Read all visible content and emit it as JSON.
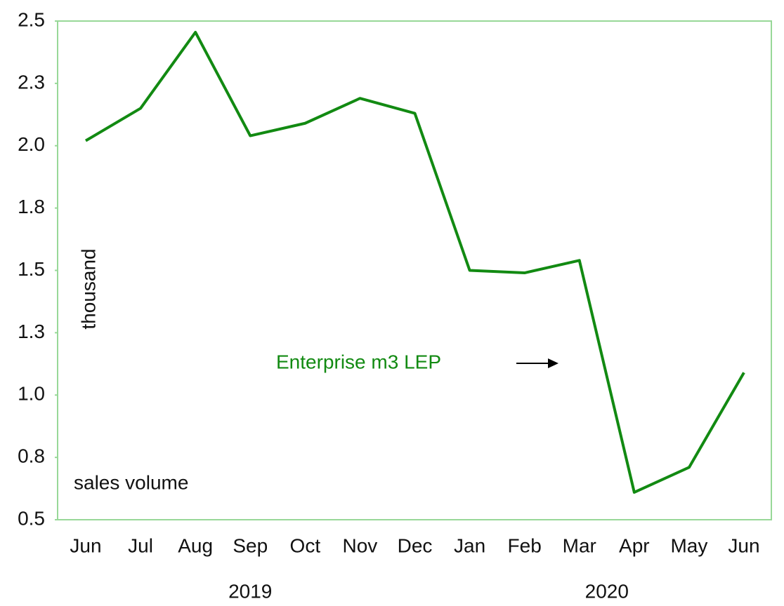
{
  "chart_data": {
    "type": "line",
    "categories": [
      "Jun",
      "Jul",
      "Aug",
      "Sep",
      "Oct",
      "Nov",
      "Dec",
      "Jan",
      "Feb",
      "Mar",
      "Apr",
      "May",
      "Jun"
    ],
    "x_groups": [
      {
        "label": "2019",
        "start": 0,
        "end": 6
      },
      {
        "label": "2020",
        "start": 7,
        "end": 12
      }
    ],
    "series": [
      {
        "name": "Enterprise m3 LEP",
        "color": "#128a12",
        "values": [
          2.02,
          2.15,
          2.455,
          2.04,
          2.09,
          2.19,
          2.13,
          1.5,
          1.49,
          1.54,
          0.61,
          0.71,
          1.09
        ]
      }
    ],
    "ylim": [
      0.5,
      2.5
    ],
    "yticks": [
      0.5,
      {
        "value": 0.75,
        "label": "0.8"
      },
      {
        "value": 1.0,
        "label": "1.0"
      },
      {
        "value": 1.25,
        "label": "1.3"
      },
      1.5,
      {
        "value": 1.75,
        "label": "1.8"
      },
      {
        "value": 2.0,
        "label": "2.0"
      },
      {
        "value": 2.25,
        "label": "2.3"
      },
      2.5
    ],
    "y_unit": "thousand",
    "y_label": "sales volume"
  }
}
